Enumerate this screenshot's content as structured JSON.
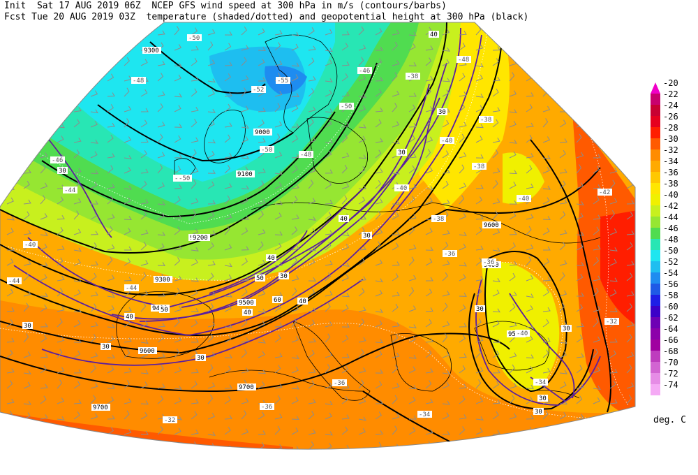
{
  "header": {
    "line1": "Init  Sat 17 AUG 2019 06Z  NCEP GFS wind speed at 300 hPa in m/s (contours/barbs)",
    "line2": "Fcst Tue 20 AUG 2019 03Z  temperature (shaded/dotted) and geopotential height at 300 hPa (black)"
  },
  "legend": {
    "units": "deg. C",
    "entries": [
      {
        "label": "-20",
        "color": "#f000c8"
      },
      {
        "label": "-22",
        "color": "#c8006e"
      },
      {
        "label": "-24",
        "color": "#c80032"
      },
      {
        "label": "-26",
        "color": "#e6001e"
      },
      {
        "label": "-28",
        "color": "#ff1e00"
      },
      {
        "label": "-30",
        "color": "#ff5a00"
      },
      {
        "label": "-32",
        "color": "#ff8c00"
      },
      {
        "label": "-34",
        "color": "#ffaa00"
      },
      {
        "label": "-36",
        "color": "#ffc800"
      },
      {
        "label": "-38",
        "color": "#ffe600"
      },
      {
        "label": "-40",
        "color": "#f0f000"
      },
      {
        "label": "-42",
        "color": "#c8f01e"
      },
      {
        "label": "-44",
        "color": "#96e632"
      },
      {
        "label": "-46",
        "color": "#50dc50"
      },
      {
        "label": "-48",
        "color": "#28e6b4"
      },
      {
        "label": "-50",
        "color": "#1ee6f0"
      },
      {
        "label": "-52",
        "color": "#1ebef0"
      },
      {
        "label": "-54",
        "color": "#1e8cf0"
      },
      {
        "label": "-56",
        "color": "#1e5ae6"
      },
      {
        "label": "-58",
        "color": "#1e1ee6"
      },
      {
        "label": "-60",
        "color": "#3c00c8"
      },
      {
        "label": "-62",
        "color": "#6e00b4"
      },
      {
        "label": "-64",
        "color": "#8c00aa"
      },
      {
        "label": "-66",
        "color": "#a000a0"
      },
      {
        "label": "-68",
        "color": "#be3cbe"
      },
      {
        "label": "-70",
        "color": "#d264d2"
      },
      {
        "label": "-72",
        "color": "#e68ce6"
      },
      {
        "label": "-74",
        "color": "#f5aaf5"
      }
    ]
  },
  "height_labels": [
    "9300",
    "9000",
    "9100",
    "9200",
    "9300",
    "9400",
    "9500",
    "9600",
    "9600",
    "9700",
    "9700",
    "9400",
    "9500",
    "9200"
  ],
  "temp_labels": [
    "-50",
    "-52",
    "-55",
    "-48",
    "-46",
    "-50",
    "-50",
    "-48",
    "-52",
    "-46",
    "-44",
    "-40",
    "-44",
    "-38",
    "-40",
    "-38",
    "-40",
    "-40",
    "-38",
    "-36",
    "-36",
    "-38",
    "-34",
    "-32",
    "-36",
    "-36",
    "-34",
    "-40",
    "-48",
    "-50",
    "-44",
    "-42",
    "-32"
  ],
  "wind_labels": [
    "40",
    "30",
    "30",
    "30",
    "30",
    "40",
    "40",
    "30",
    "50",
    "40",
    "40",
    "60",
    "50",
    "40",
    "30",
    "30",
    "30",
    "30",
    "30",
    "30",
    "30"
  ],
  "colors": {
    "height_contour": "#000000",
    "wind_contour": "#5a1ea0",
    "temp_dotted": "#ffffff",
    "coast": "#000000",
    "barb": "#8c8c8c"
  }
}
